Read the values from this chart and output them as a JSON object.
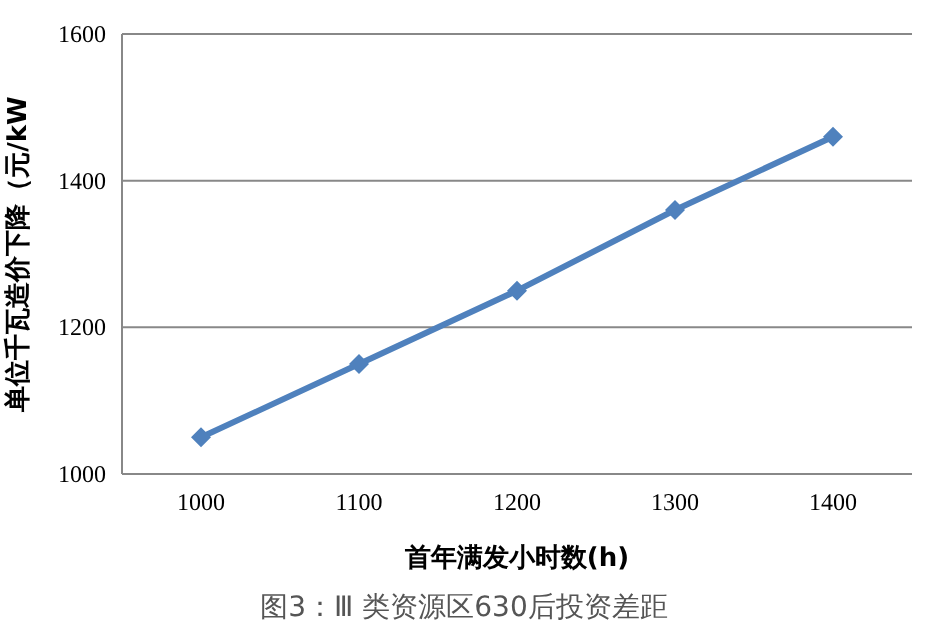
{
  "chart_data": {
    "type": "line",
    "xlabel": "首年满发小时数(h)",
    "ylabel": "单位千瓦造价下降（元/kW",
    "annotations": [
      "图3：Ⅲ 类资源区630后投资差距"
    ],
    "categories": [
      "1000",
      "1100",
      "1200",
      "1300",
      "1400"
    ],
    "series": [
      {
        "color": "#4f81bd",
        "values": [
          1050,
          1150,
          1250,
          1360,
          1460
        ]
      }
    ],
    "ylim": [
      1000,
      1600
    ],
    "yticks": [
      1000,
      1200,
      1400,
      1600
    ],
    "grid": "y",
    "marker": "diamond",
    "line_style": "solid"
  }
}
